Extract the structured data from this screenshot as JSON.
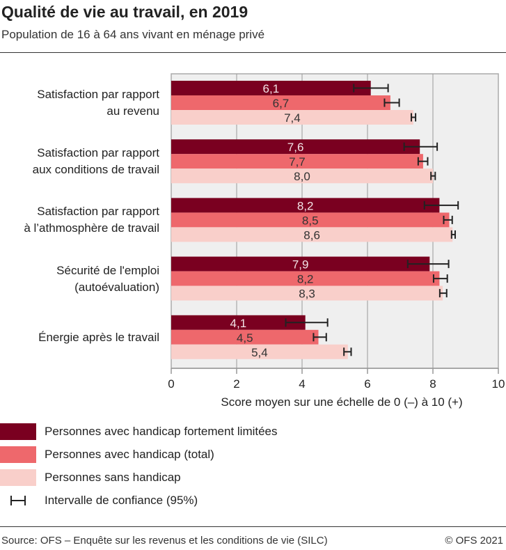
{
  "title": "Qualité de vie au travail, en 2019",
  "subtitle": "Population de 16 à 64 ans vivant en ménage privé",
  "source": "Source: OFS – Enquête sur les revenus et les conditions de vie (SILC)",
  "copyright": "© OFS 2021",
  "colors": {
    "dark": "#7a0020",
    "mid": "#ee686c",
    "light": "#f9cfca",
    "plot_bg": "#efefef",
    "grid": "#999999"
  },
  "chart_data": {
    "type": "bar",
    "orientation": "horizontal",
    "title": "Qualité de vie au travail, en 2019",
    "xlabel": "Score moyen sur une échelle de 0 (–) à 10 (+)",
    "xlim": [
      0,
      10
    ],
    "xticks": [
      "0",
      "2",
      "4",
      "6",
      "8",
      "10"
    ],
    "grid": true,
    "legend_position": "bottom",
    "categories": [
      [
        "Satisfaction par rapport",
        "au revenu"
      ],
      [
        "Satisfaction par rapport",
        "aux conditions de travail"
      ],
      [
        "Satisfaction par rapport",
        "à l’athmosphère de travail"
      ],
      [
        "Sécurité de l'emploi",
        "(autoévaluation)"
      ],
      [
        "Énergie après le travail"
      ]
    ],
    "series": [
      {
        "name": "Personnes avec handicap fortement limitées",
        "color": "#7a0020",
        "values": [
          6.1,
          7.6,
          8.2,
          7.9,
          4.1
        ],
        "labels": [
          "6,1",
          "7,6",
          "8,2",
          "7,9",
          "4,1"
        ],
        "ci": [
          [
            5.58,
            6.63
          ],
          [
            7.12,
            8.13
          ],
          [
            7.74,
            8.77
          ],
          [
            7.23,
            8.48
          ],
          [
            3.5,
            4.78
          ]
        ]
      },
      {
        "name": "Personnes avec handicap (total)",
        "color": "#ee686c",
        "values": [
          6.7,
          7.7,
          8.5,
          8.2,
          4.5
        ],
        "labels": [
          "6,7",
          "7,7",
          "8,5",
          "8,2",
          "4,5"
        ],
        "ci": [
          [
            6.52,
            6.97
          ],
          [
            7.55,
            7.84
          ],
          [
            8.33,
            8.59
          ],
          [
            8.02,
            8.44
          ],
          [
            4.35,
            4.74
          ]
        ]
      },
      {
        "name": "Personnes sans handicap",
        "color": "#f9cfca",
        "values": [
          7.4,
          8.0,
          8.6,
          8.3,
          5.4
        ],
        "labels": [
          "7,4",
          "8,0",
          "8,6",
          "8,3",
          "5,4"
        ],
        "ci": [
          [
            7.34,
            7.47
          ],
          [
            7.94,
            8.07
          ],
          [
            8.57,
            8.68
          ],
          [
            8.21,
            8.42
          ],
          [
            5.28,
            5.5
          ]
        ]
      }
    ],
    "ci_legend": "Intervalle de confiance (95%)"
  }
}
